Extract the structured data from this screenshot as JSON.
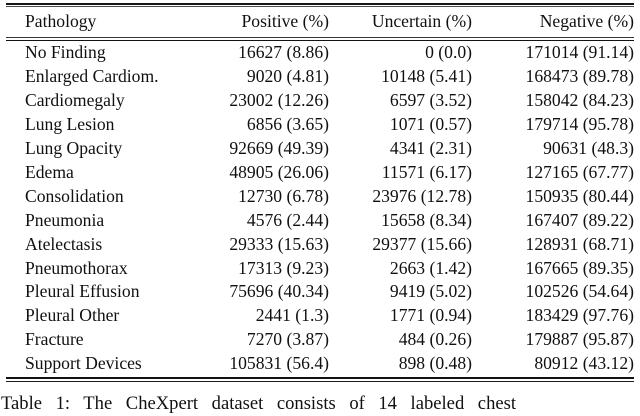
{
  "colors": {
    "background": "#ffffff",
    "text": "#101010",
    "rule": "#121212"
  },
  "table": {
    "columns": [
      "Pathology",
      "Positive (%)",
      "Uncertain (%)",
      "Negative (%)"
    ],
    "rows": [
      {
        "pathology": "No Finding",
        "positive": "16627 (8.86)",
        "uncertain": "0 (0.0)",
        "negative": "171014 (91.14)"
      },
      {
        "pathology": "Enlarged Cardiom.",
        "positive": "9020 (4.81)",
        "uncertain": "10148 (5.41)",
        "negative": "168473 (89.78)"
      },
      {
        "pathology": "Cardiomegaly",
        "positive": "23002 (12.26)",
        "uncertain": "6597 (3.52)",
        "negative": "158042 (84.23)"
      },
      {
        "pathology": "Lung Lesion",
        "positive": "6856 (3.65)",
        "uncertain": "1071 (0.57)",
        "negative": "179714 (95.78)"
      },
      {
        "pathology": "Lung Opacity",
        "positive": "92669 (49.39)",
        "uncertain": "4341 (2.31)",
        "negative": "90631 (48.3)"
      },
      {
        "pathology": "Edema",
        "positive": "48905 (26.06)",
        "uncertain": "11571 (6.17)",
        "negative": "127165 (67.77)"
      },
      {
        "pathology": "Consolidation",
        "positive": "12730 (6.78)",
        "uncertain": "23976 (12.78)",
        "negative": "150935 (80.44)"
      },
      {
        "pathology": "Pneumonia",
        "positive": "4576 (2.44)",
        "uncertain": "15658 (8.34)",
        "negative": "167407 (89.22)"
      },
      {
        "pathology": "Atelectasis",
        "positive": "29333 (15.63)",
        "uncertain": "29377 (15.66)",
        "negative": "128931 (68.71)"
      },
      {
        "pathology": "Pneumothorax",
        "positive": "17313 (9.23)",
        "uncertain": "2663 (1.42)",
        "negative": "167665 (89.35)"
      },
      {
        "pathology": "Pleural Effusion",
        "positive": "75696 (40.34)",
        "uncertain": "9419 (5.02)",
        "negative": "102526 (54.64)"
      },
      {
        "pathology": "Pleural Other",
        "positive": "2441 (1.3)",
        "uncertain": "1771 (0.94)",
        "negative": "183429 (97.76)"
      },
      {
        "pathology": "Fracture",
        "positive": "7270 (3.87)",
        "uncertain": "484 (0.26)",
        "negative": "179887 (95.87)"
      },
      {
        "pathology": "Support Devices",
        "positive": "105831 (56.4)",
        "uncertain": "898 (0.48)",
        "negative": "80912 (43.12)"
      }
    ]
  },
  "caption": {
    "text": "Table 1: The CheXpert dataset consists of 14 labeled chest"
  }
}
